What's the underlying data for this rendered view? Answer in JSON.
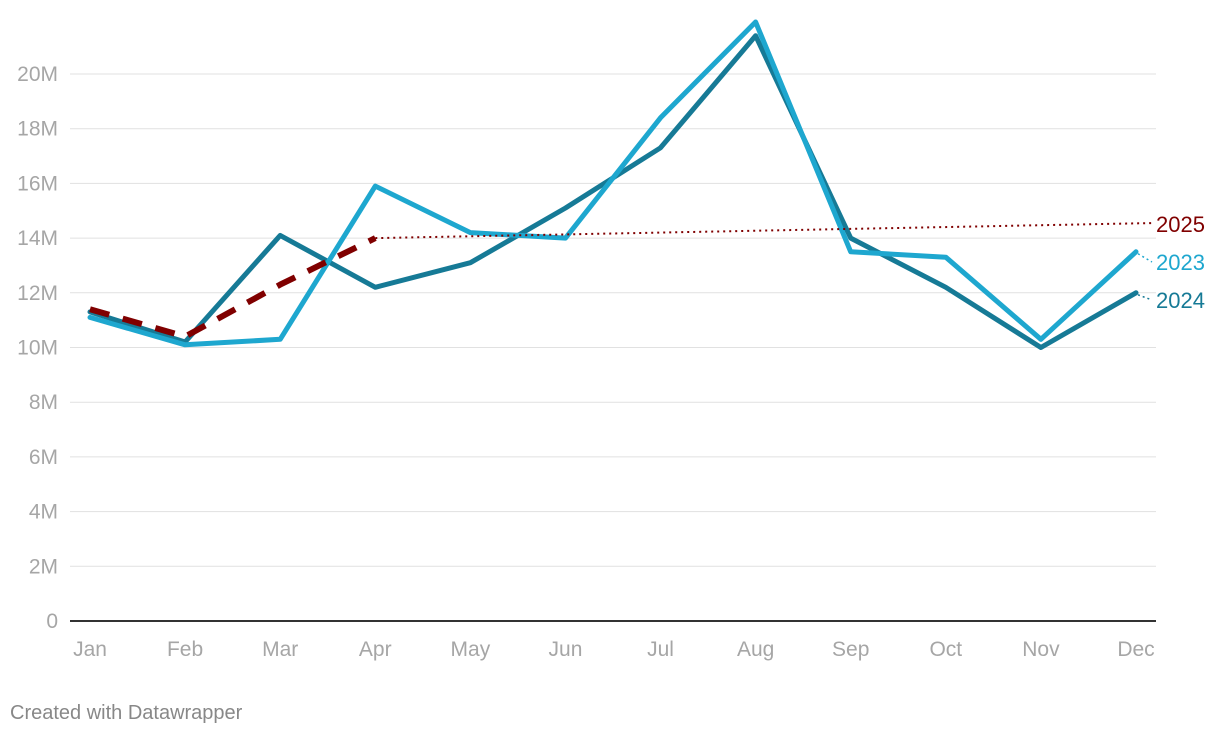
{
  "chart_data": {
    "type": "line",
    "title": "",
    "xlabel": "",
    "ylabel": "",
    "categories": [
      "Jan",
      "Feb",
      "Mar",
      "Apr",
      "May",
      "Jun",
      "Jul",
      "Aug",
      "Sep",
      "Oct",
      "Nov",
      "Dec"
    ],
    "ylim": [
      0,
      22000000
    ],
    "yticks": [
      0,
      2000000,
      4000000,
      6000000,
      8000000,
      10000000,
      12000000,
      14000000,
      16000000,
      18000000,
      20000000
    ],
    "ytick_labels": [
      "0",
      "2M",
      "4M",
      "6M",
      "8M",
      "10M",
      "12M",
      "14M",
      "16M",
      "18M",
      "20M"
    ],
    "grid": true,
    "series": [
      {
        "name": "2024",
        "label": "2024",
        "color": "#167a96",
        "style": "solid",
        "values": [
          11300000,
          10200000,
          14100000,
          12200000,
          13100000,
          15100000,
          17300000,
          21400000,
          14000000,
          12200000,
          10000000,
          12000000
        ]
      },
      {
        "name": "2023",
        "label": "2023",
        "color": "#1ea7cf",
        "style": "solid",
        "values": [
          11100000,
          10100000,
          10300000,
          15900000,
          14200000,
          14000000,
          18400000,
          21900000,
          13500000,
          13300000,
          10300000,
          13500000
        ]
      },
      {
        "name": "2025",
        "label": "2025",
        "color": "#800000",
        "style": "dashed",
        "values": [
          11400000,
          10400000,
          12300000,
          14000000,
          null,
          null,
          null,
          null,
          null,
          null,
          null,
          null
        ],
        "trend": {
          "from": "Apr",
          "to": "Dec",
          "start": 14000000,
          "end": 14550000,
          "style": "dotted"
        }
      }
    ],
    "footer": "Created with Datawrapper"
  }
}
